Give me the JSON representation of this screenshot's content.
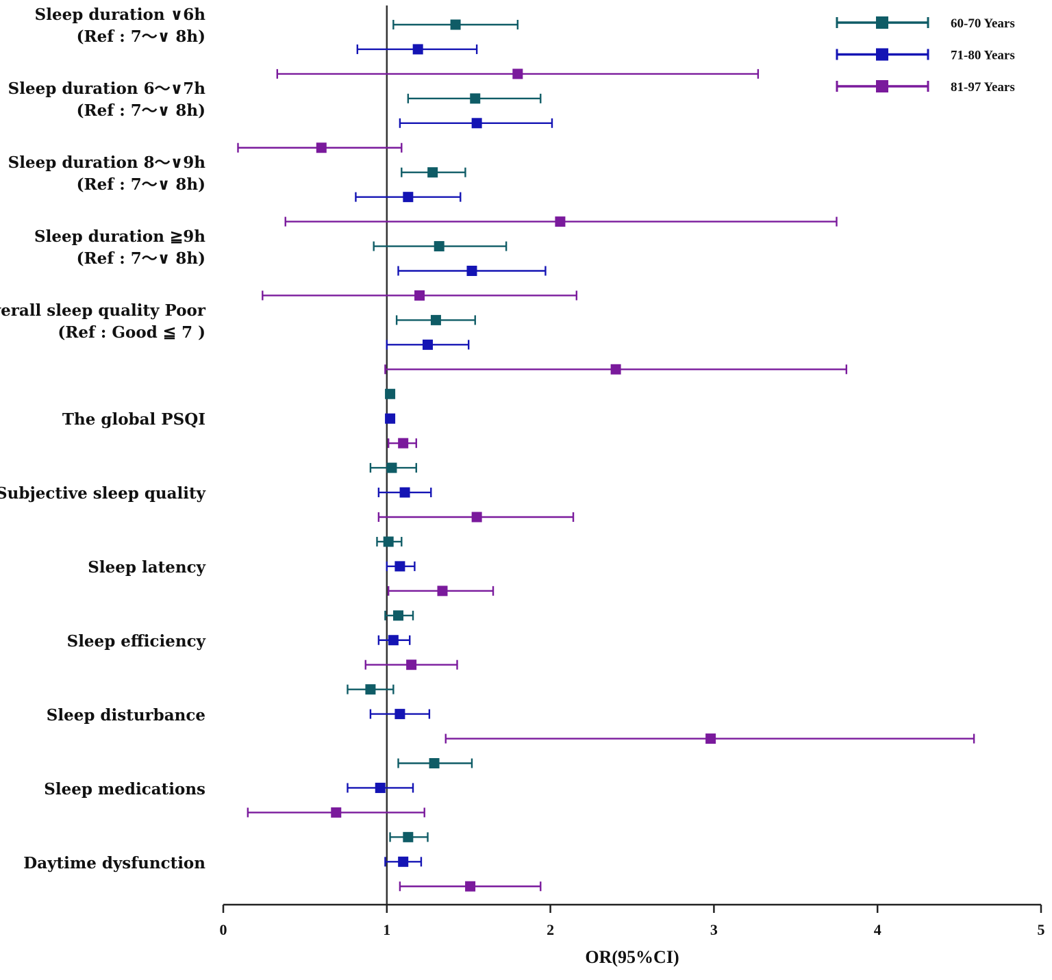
{
  "chart_data": {
    "type": "forest",
    "xlabel": "OR(95%CI)",
    "xlim": [
      0,
      5
    ],
    "xticks": [
      0,
      1,
      2,
      3,
      4,
      5
    ],
    "reference_line": 1,
    "series": [
      {
        "name": "60-70 Years",
        "color": "#0f5c66"
      },
      {
        "name": "71-80 Years",
        "color": "#1414b4"
      },
      {
        "name": "81-97 Years",
        "color": "#7a1a9c"
      }
    ],
    "groups": [
      {
        "label": [
          "Sleep duration ∨6h",
          "(Ref : 7〜∨ 8h)"
        ],
        "estimates": [
          [
            1.42,
            1.04,
            1.8
          ],
          [
            1.19,
            0.82,
            1.55
          ],
          [
            1.8,
            0.33,
            3.27
          ]
        ]
      },
      {
        "label": [
          "Sleep duration 6〜∨7h",
          "(Ref : 7〜∨ 8h)"
        ],
        "estimates": [
          [
            1.54,
            1.13,
            1.94
          ],
          [
            1.55,
            1.08,
            2.01
          ],
          [
            0.6,
            0.09,
            1.09
          ]
        ]
      },
      {
        "label": [
          "Sleep duration 8〜∨9h",
          "(Ref : 7〜∨ 8h)"
        ],
        "estimates": [
          [
            1.28,
            1.09,
            1.48
          ],
          [
            1.13,
            0.81,
            1.45
          ],
          [
            2.06,
            0.38,
            3.75
          ]
        ]
      },
      {
        "label": [
          "Sleep duration ≧9h",
          "(Ref : 7〜∨ 8h)"
        ],
        "estimates": [
          [
            1.32,
            0.92,
            1.73
          ],
          [
            1.52,
            1.07,
            1.97
          ],
          [
            1.2,
            0.24,
            2.16
          ]
        ]
      },
      {
        "label": [
          "Overall sleep quality Poor",
          "(Ref : Good ≦ 7 )"
        ],
        "estimates": [
          [
            1.3,
            1.06,
            1.54
          ],
          [
            1.25,
            1.0,
            1.5
          ],
          [
            2.4,
            0.99,
            3.81
          ]
        ]
      },
      {
        "label": [
          "The global PSQI"
        ],
        "estimates": [
          [
            1.02,
            1.0,
            1.04
          ],
          [
            1.02,
            1.0,
            1.04
          ],
          [
            1.1,
            1.01,
            1.18
          ]
        ]
      },
      {
        "label": [
          "Subjective sleep quality"
        ],
        "estimates": [
          [
            1.03,
            0.9,
            1.18
          ],
          [
            1.11,
            0.95,
            1.27
          ],
          [
            1.55,
            0.95,
            2.14
          ]
        ]
      },
      {
        "label": [
          "Sleep latency"
        ],
        "estimates": [
          [
            1.01,
            0.94,
            1.09
          ],
          [
            1.08,
            1.0,
            1.17
          ],
          [
            1.34,
            1.01,
            1.65
          ]
        ]
      },
      {
        "label": [
          "Sleep efficiency"
        ],
        "estimates": [
          [
            1.07,
            0.99,
            1.16
          ],
          [
            1.04,
            0.95,
            1.14
          ],
          [
            1.15,
            0.87,
            1.43
          ]
        ]
      },
      {
        "label": [
          "Sleep disturbance"
        ],
        "estimates": [
          [
            0.9,
            0.76,
            1.04
          ],
          [
            1.08,
            0.9,
            1.26
          ],
          [
            2.98,
            1.36,
            4.59
          ]
        ]
      },
      {
        "label": [
          "Sleep medications"
        ],
        "estimates": [
          [
            1.29,
            1.07,
            1.52
          ],
          [
            0.96,
            0.76,
            1.16
          ],
          [
            0.69,
            0.15,
            1.23
          ]
        ]
      },
      {
        "label": [
          "Daytime dysfunction"
        ],
        "estimates": [
          [
            1.13,
            1.02,
            1.25
          ],
          [
            1.1,
            0.99,
            1.21
          ],
          [
            1.51,
            1.08,
            1.94
          ]
        ]
      }
    ]
  }
}
